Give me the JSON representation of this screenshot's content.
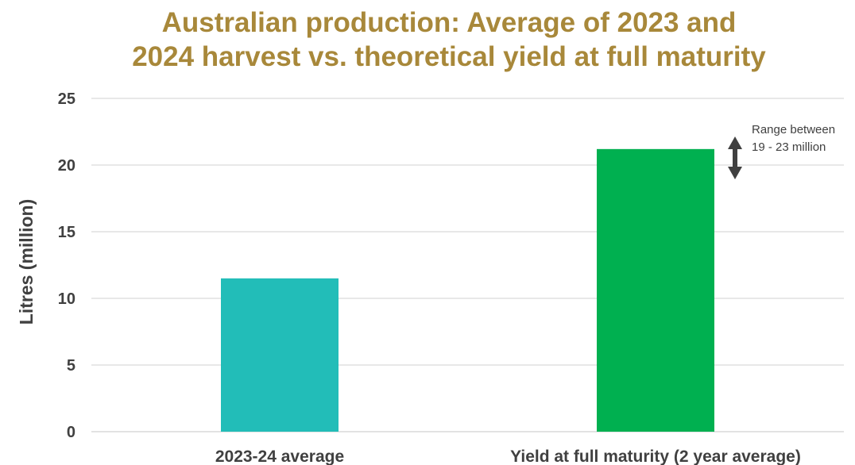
{
  "chart_data": {
    "type": "bar",
    "title_lines": [
      "Australian production: Average of 2023 and",
      "2024 harvest vs. theoretical yield at full maturity"
    ],
    "ylabel": "Litres (million)",
    "xlabel": "",
    "ylim": [
      0,
      25
    ],
    "yticks": [
      0,
      5,
      10,
      15,
      20,
      25
    ],
    "grid": true,
    "categories": [
      "2023-24 average",
      "Yield at full maturity (2 year average)"
    ],
    "values": [
      11.5,
      21.2
    ],
    "bar_colors": [
      "#22BDB8",
      "#00B050"
    ],
    "annotation": {
      "lines": [
        "Range between",
        "19 - 23 million"
      ],
      "range": [
        19,
        23
      ],
      "icon": "double-arrow-icon"
    }
  },
  "colors": {
    "title": "#A8883A",
    "text": "#404040",
    "grid": "#D9D9D9",
    "arrow": "#404040"
  }
}
